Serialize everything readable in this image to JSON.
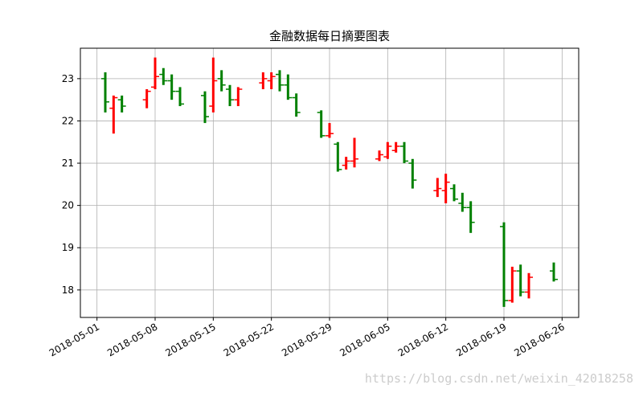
{
  "chart_data": {
    "type": "ohlc",
    "title": "金融数据每日摘要图表",
    "watermark": "https://blog.csdn.net/weixin_42018258",
    "x": [
      "2018-05-02",
      "2018-05-03",
      "2018-05-04",
      "2018-05-07",
      "2018-05-08",
      "2018-05-09",
      "2018-05-10",
      "2018-05-11",
      "2018-05-14",
      "2018-05-15",
      "2018-05-16",
      "2018-05-17",
      "2018-05-18",
      "2018-05-21",
      "2018-05-22",
      "2018-05-23",
      "2018-05-24",
      "2018-05-25",
      "2018-05-28",
      "2018-05-29",
      "2018-05-30",
      "2018-05-31",
      "2018-06-01",
      "2018-06-04",
      "2018-06-05",
      "2018-06-06",
      "2018-06-07",
      "2018-06-08",
      "2018-06-11",
      "2018-06-12",
      "2018-06-13",
      "2018-06-14",
      "2018-06-15",
      "2018-06-19",
      "2018-06-20",
      "2018-06-21",
      "2018-06-22",
      "2018-06-25"
    ],
    "open": [
      23.0,
      22.3,
      22.5,
      22.5,
      22.8,
      23.1,
      22.95,
      22.7,
      22.6,
      22.35,
      23.0,
      22.75,
      22.5,
      22.9,
      22.95,
      23.1,
      22.85,
      22.55,
      22.2,
      21.65,
      21.45,
      20.95,
      21.05,
      21.1,
      21.15,
      21.3,
      21.4,
      21.0,
      20.35,
      20.35,
      20.4,
      20.05,
      19.95,
      19.5,
      17.75,
      18.45,
      17.95,
      18.45
    ],
    "high": [
      23.15,
      22.6,
      22.6,
      22.75,
      23.5,
      23.25,
      23.1,
      22.8,
      22.7,
      23.5,
      23.2,
      22.85,
      22.8,
      23.15,
      23.15,
      23.2,
      23.1,
      22.65,
      22.25,
      21.95,
      21.5,
      21.15,
      21.6,
      21.3,
      21.5,
      21.5,
      21.5,
      21.1,
      20.65,
      20.75,
      20.5,
      20.3,
      20.1,
      19.6,
      18.55,
      18.6,
      18.4,
      18.65
    ],
    "low": [
      22.2,
      21.7,
      22.2,
      22.3,
      22.75,
      22.85,
      22.5,
      22.35,
      21.95,
      22.2,
      22.7,
      22.35,
      22.35,
      22.75,
      22.75,
      22.7,
      22.5,
      22.1,
      21.6,
      21.6,
      20.8,
      20.85,
      20.9,
      21.05,
      21.1,
      21.25,
      21.0,
      20.4,
      20.2,
      20.05,
      20.1,
      19.85,
      19.35,
      17.6,
      17.7,
      17.85,
      17.8,
      18.2
    ],
    "close": [
      22.45,
      22.55,
      22.35,
      22.7,
      23.05,
      22.95,
      22.7,
      22.4,
      22.1,
      22.95,
      22.85,
      22.5,
      22.75,
      23.0,
      23.05,
      22.85,
      22.55,
      22.2,
      21.65,
      21.7,
      20.85,
      21.05,
      21.1,
      21.2,
      21.4,
      21.4,
      21.05,
      20.6,
      20.4,
      20.55,
      20.15,
      19.95,
      19.6,
      17.75,
      18.45,
      17.95,
      18.3,
      18.25
    ],
    "up_color": "red",
    "down_color": "green",
    "xlim": [
      "2018-04-29",
      "2018-06-28"
    ],
    "xticks": [
      "2018-05-01",
      "2018-05-08",
      "2018-05-15",
      "2018-05-22",
      "2018-05-29",
      "2018-06-05",
      "2018-06-12",
      "2018-06-19",
      "2018-06-26"
    ],
    "ylim": [
      17.35,
      23.72
    ],
    "yticks": [
      18,
      19,
      20,
      21,
      22,
      23
    ],
    "grid": true
  }
}
